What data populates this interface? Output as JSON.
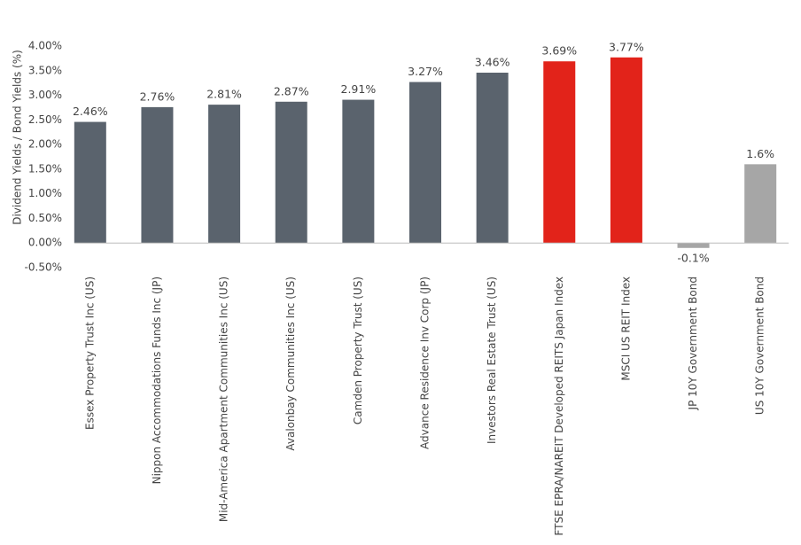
{
  "chart_data": {
    "type": "bar",
    "y_label": "Dividend Yields / Bond Yields (%)",
    "categories": [
      "Essex Property Trust Inc (US)",
      "Nippon Accommodations Funds Inc (JP)",
      "Mid-America Apartment Communities Inc (US)",
      "Avalonbay Communities Inc (US)",
      "Camden Property Trust (US)",
      "Advance Residence Inv Corp (JP)",
      "Investors Real Estate Trust (US)",
      "FTSE EPRA/NAREIT Developed REITS Japan Index",
      "MSCI US REIT Index",
      "JP 10Y Government Bond",
      "US 10Y Government Bond"
    ],
    "values": [
      2.46,
      2.76,
      2.81,
      2.87,
      2.91,
      3.27,
      3.46,
      3.69,
      3.77,
      -0.1,
      1.6
    ],
    "value_labels": [
      "2.46%",
      "2.76%",
      "2.81%",
      "2.87%",
      "2.91%",
      "3.27%",
      "3.46%",
      "3.69%",
      "3.77%",
      "-0.1%",
      "1.6%"
    ],
    "colors": [
      "#5a636d",
      "#5a636d",
      "#5a636d",
      "#5a636d",
      "#5a636d",
      "#5a636d",
      "#5a636d",
      "#e2231a",
      "#e2231a",
      "#a6a6a6",
      "#a6a6a6"
    ],
    "ylim": [
      -0.5,
      4.0
    ],
    "yticks": [
      {
        "value": 4.0,
        "label": "4.00%"
      },
      {
        "value": 3.5,
        "label": "3.50%"
      },
      {
        "value": 3.0,
        "label": "3.00%"
      },
      {
        "value": 2.5,
        "label": "2.50%"
      },
      {
        "value": 2.0,
        "label": "2.00%"
      },
      {
        "value": 1.5,
        "label": "1.50%"
      },
      {
        "value": 1.0,
        "label": "1.00%"
      },
      {
        "value": 0.5,
        "label": "0.50%"
      },
      {
        "value": 0.0,
        "label": "0.00%"
      },
      {
        "value": -0.5,
        "label": "-0.50%"
      }
    ],
    "grid": false
  }
}
